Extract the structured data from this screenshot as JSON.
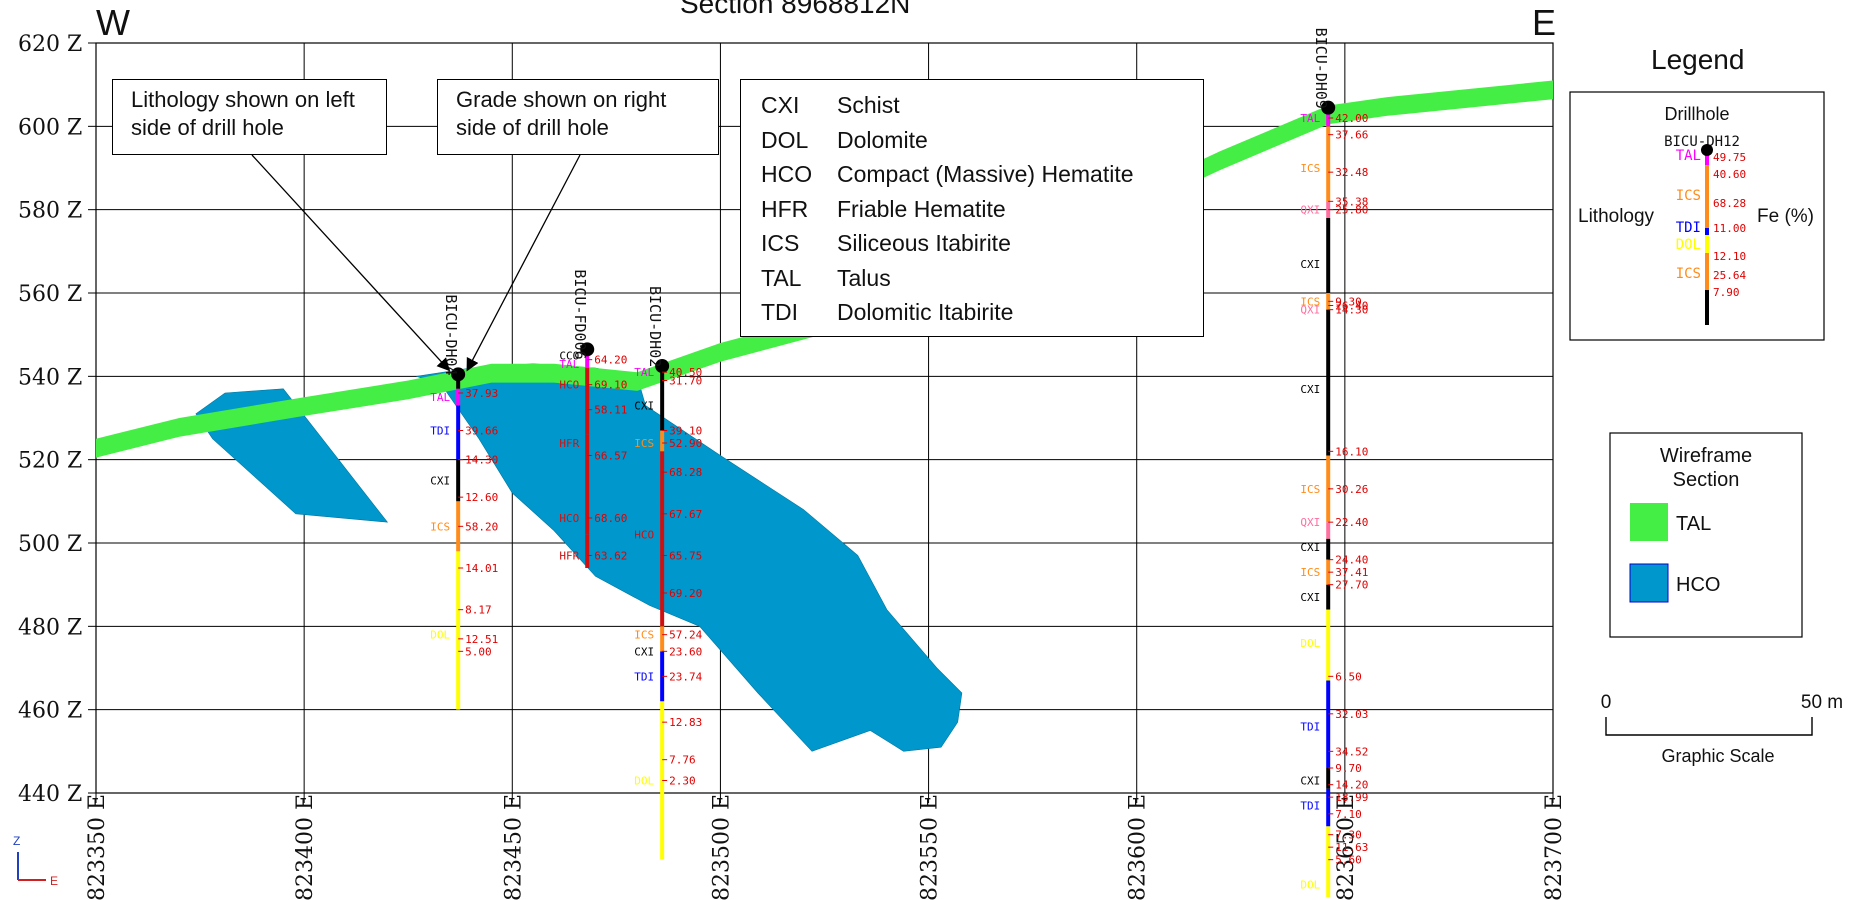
{
  "section_title": "Section 8968812N",
  "dir_west": "W",
  "dir_east": "E",
  "axes": {
    "elevation_labels": [
      "620 Z",
      "600 Z",
      "580 Z",
      "560 Z",
      "540 Z",
      "520 Z",
      "500 Z",
      "480 Z",
      "460 Z",
      "440 Z"
    ],
    "easting_labels": [
      "823350 E",
      "823400 E",
      "823450 E",
      "823500 E",
      "823550 E",
      "823600 E",
      "823650 E",
      "823700 E"
    ]
  },
  "callouts": {
    "lithology": "Lithology shown on left side of drill hole",
    "grade": "Grade shown on right side of drill hole"
  },
  "abbreviations": [
    {
      "code": "CXI",
      "name": "Schist"
    },
    {
      "code": "DOL",
      "name": "Dolomite"
    },
    {
      "code": "HCO",
      "name": "Compact (Massive) Hematite"
    },
    {
      "code": "HFR",
      "name": "Friable Hematite"
    },
    {
      "code": "ICS",
      "name": "Siliceous Itabirite"
    },
    {
      "code": "TAL",
      "name": "Talus"
    },
    {
      "code": "TDI",
      "name": "Dolomitic Itabirite"
    }
  ],
  "legend": {
    "title": "Legend",
    "drillhole_title": "Drillhole",
    "sample_hole": "BICU-DH12",
    "lithology_label": "Lithology",
    "grade_label": "Fe (%)",
    "sample_lith": [
      "TAL",
      "ICS",
      "TDI",
      "DOL",
      "ICS"
    ],
    "sample_grades": [
      "49.75",
      "40.60",
      "68.28",
      "11.00",
      "12.10",
      "25.64",
      "7.90"
    ]
  },
  "wireframe": {
    "title": "Wireframe Section",
    "items": [
      {
        "label": "TAL",
        "color": "#44ee44"
      },
      {
        "label": "HCO",
        "color": "#0098cc"
      }
    ]
  },
  "scale": {
    "zero": "0",
    "end": "50 m",
    "label": "Graphic Scale"
  },
  "axis_indicator": {
    "z": "Z",
    "e": "E"
  },
  "colors": {
    "TAL": "#ff00ff",
    "TDI": "#0000ff",
    "CXI": "#000000",
    "ICS": "#ff8c1a",
    "DOL": "#ffff00",
    "HCO": "#d01010",
    "HFR": "#d01010",
    "QXI": "#ff6f9f",
    "grade": "#e00000"
  },
  "drillholes": [
    {
      "name": "BICU-DH04",
      "easting": 823437,
      "collar_z": 540,
      "intervals": [
        {
          "lith": "CXI",
          "top": 540,
          "bottom": 537
        },
        {
          "lith": "TAL",
          "top": 537,
          "bottom": 533
        },
        {
          "lith": "TDI",
          "top": 533,
          "bottom": 520
        },
        {
          "lith": "CXI",
          "top": 520,
          "bottom": 510
        },
        {
          "lith": "ICS",
          "top": 510,
          "bottom": 498
        },
        {
          "lith": "DOL",
          "top": 498,
          "bottom": 460
        }
      ],
      "lith_labels": [
        {
          "lith": "TAL",
          "z": 535
        },
        {
          "lith": "TDI",
          "z": 527
        },
        {
          "lith": "CXI",
          "z": 515
        },
        {
          "lith": "ICS",
          "z": 504
        },
        {
          "lith": "DOL",
          "z": 478
        }
      ],
      "grades": [
        {
          "v": "37.93",
          "z": 536
        },
        {
          "v": "39.66",
          "z": 527
        },
        {
          "v": "14.30",
          "z": 520
        },
        {
          "v": "12.60",
          "z": 511
        },
        {
          "v": "58.20",
          "z": 504
        },
        {
          "v": "14.01",
          "z": 494
        },
        {
          "v": "8.17",
          "z": 484
        },
        {
          "v": "12.51",
          "z": 477
        },
        {
          "v": "5.00",
          "z": 474
        }
      ]
    },
    {
      "name": "BICU-FD006",
      "easting": 823468,
      "collar_z": 546,
      "intervals": [
        {
          "lith": "TAL",
          "top": 546,
          "bottom": 542
        },
        {
          "lith": "HCO",
          "top": 542,
          "bottom": 538
        },
        {
          "lith": "HFR",
          "top": 538,
          "bottom": 526
        },
        {
          "lith": "HCO",
          "top": 526,
          "bottom": 502
        },
        {
          "lith": "HFR",
          "top": 502,
          "bottom": 494
        }
      ],
      "lith_labels": [
        {
          "lith": "CCO",
          "z": 545
        },
        {
          "lith": "TAL",
          "z": 543
        },
        {
          "lith": "HCO",
          "z": 538
        },
        {
          "lith": "HFR",
          "z": 524
        },
        {
          "lith": "HCO",
          "z": 506
        },
        {
          "lith": "HFR",
          "z": 497
        }
      ],
      "grades": [
        {
          "v": "64.20",
          "z": 544
        },
        {
          "v": "69.10",
          "z": 538
        },
        {
          "v": "58.11",
          "z": 532
        },
        {
          "v": "66.57",
          "z": 521
        },
        {
          "v": "68.60",
          "z": 506
        },
        {
          "v": "63.62",
          "z": 497
        }
      ]
    },
    {
      "name": "BICU-DH02",
      "easting": 823486,
      "collar_z": 542,
      "intervals": [
        {
          "lith": "CXI",
          "top": 542,
          "bottom": 527
        },
        {
          "lith": "ICS",
          "top": 527,
          "bottom": 522
        },
        {
          "lith": "HCO",
          "top": 522,
          "bottom": 480
        },
        {
          "lith": "ICS",
          "top": 480,
          "bottom": 474
        },
        {
          "lith": "TDI",
          "top": 474,
          "bottom": 462
        },
        {
          "lith": "DOL",
          "top": 462,
          "bottom": 424
        }
      ],
      "lith_labels": [
        {
          "lith": "TAL",
          "z": 541
        },
        {
          "lith": "CXI",
          "z": 533
        },
        {
          "lith": "ICS",
          "z": 524
        },
        {
          "lith": "HCO",
          "z": 502
        },
        {
          "lith": "ICS",
          "z": 478
        },
        {
          "lith": "CXI",
          "z": 474
        },
        {
          "lith": "TDI",
          "z": 468
        },
        {
          "lith": "DOL",
          "z": 443
        }
      ],
      "grades": [
        {
          "v": "40.50",
          "z": 541
        },
        {
          "v": "31.70",
          "z": 539
        },
        {
          "v": "39.10",
          "z": 527
        },
        {
          "v": "52.90",
          "z": 524
        },
        {
          "v": "68.28",
          "z": 517
        },
        {
          "v": "67.67",
          "z": 507
        },
        {
          "v": "65.75",
          "z": 497
        },
        {
          "v": "69.20",
          "z": 488
        },
        {
          "v": "57.24",
          "z": 478
        },
        {
          "v": "23.60",
          "z": 474
        },
        {
          "v": "23.74",
          "z": 468
        },
        {
          "v": "12.83",
          "z": 457
        },
        {
          "v": "7.76",
          "z": 448
        },
        {
          "v": "2.30",
          "z": 443
        }
      ]
    },
    {
      "name": "BICU-DH09",
      "easting": 823646,
      "collar_z": 604,
      "intervals": [
        {
          "lith": "TAL",
          "top": 604,
          "bottom": 600
        },
        {
          "lith": "ICS",
          "top": 600,
          "bottom": 582
        },
        {
          "lith": "QXI",
          "top": 582,
          "bottom": 578
        },
        {
          "lith": "CXI",
          "top": 578,
          "bottom": 560
        },
        {
          "lith": "ICS",
          "top": 560,
          "bottom": 556
        },
        {
          "lith": "CXI",
          "top": 556,
          "bottom": 521
        },
        {
          "lith": "ICS",
          "top": 521,
          "bottom": 505
        },
        {
          "lith": "QXI",
          "top": 505,
          "bottom": 501
        },
        {
          "lith": "CXI",
          "top": 501,
          "bottom": 496
        },
        {
          "lith": "ICS",
          "top": 496,
          "bottom": 490
        },
        {
          "lith": "CXI",
          "top": 490,
          "bottom": 484
        },
        {
          "lith": "DOL",
          "top": 484,
          "bottom": 467
        },
        {
          "lith": "TDI",
          "top": 467,
          "bottom": 446
        },
        {
          "lith": "CXI",
          "top": 446,
          "bottom": 441
        },
        {
          "lith": "TDI",
          "top": 441,
          "bottom": 432
        },
        {
          "lith": "DOL",
          "top": 432,
          "bottom": 415
        }
      ],
      "lith_labels": [
        {
          "lith": "TAL",
          "z": 602
        },
        {
          "lith": "ICS",
          "z": 590
        },
        {
          "lith": "QXI",
          "z": 580
        },
        {
          "lith": "CXI",
          "z": 567
        },
        {
          "lith": "ICS",
          "z": 558
        },
        {
          "lith": "QXI",
          "z": 556
        },
        {
          "lith": "CXI",
          "z": 537
        },
        {
          "lith": "ICS",
          "z": 513
        },
        {
          "lith": "QXI",
          "z": 505
        },
        {
          "lith": "CXI",
          "z": 499
        },
        {
          "lith": "ICS",
          "z": 493
        },
        {
          "lith": "CXI",
          "z": 487
        },
        {
          "lith": "DOL",
          "z": 476
        },
        {
          "lith": "TDI",
          "z": 456
        },
        {
          "lith": "CXI",
          "z": 443
        },
        {
          "lith": "TDI",
          "z": 437
        },
        {
          "lith": "DOL",
          "z": 418
        }
      ],
      "grades": [
        {
          "v": "42.00",
          "z": 602
        },
        {
          "v": "37.66",
          "z": 598
        },
        {
          "v": "32.48",
          "z": 589
        },
        {
          "v": "35.38",
          "z": 582
        },
        {
          "v": "25.80",
          "z": 580
        },
        {
          "v": "9.30",
          "z": 558
        },
        {
          "v": "26.40",
          "z": 557
        },
        {
          "v": "14.30",
          "z": 556
        },
        {
          "v": "16.10",
          "z": 522
        },
        {
          "v": "30.26",
          "z": 513
        },
        {
          "v": "22.40",
          "z": 505
        },
        {
          "v": "24.40",
          "z": 496
        },
        {
          "v": "37.41",
          "z": 493
        },
        {
          "v": "27.70",
          "z": 490
        },
        {
          "v": "6.50",
          "z": 468
        },
        {
          "v": "32.03",
          "z": 459
        },
        {
          "v": "34.52",
          "z": 450
        },
        {
          "v": "9.70",
          "z": 446
        },
        {
          "v": "14.20",
          "z": 442
        },
        {
          "v": "18.99",
          "z": 439
        },
        {
          "v": "7.10",
          "z": 435
        },
        {
          "v": "7.30",
          "z": 430
        },
        {
          "v": "11.63",
          "z": 427
        },
        {
          "v": "5.60",
          "z": 424
        }
      ]
    }
  ]
}
